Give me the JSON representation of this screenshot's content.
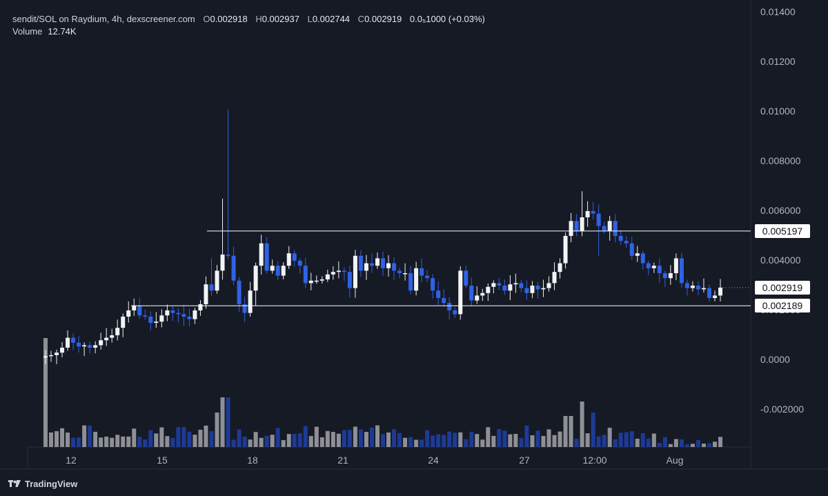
{
  "header": {
    "symbol_line": "sendit/SOL on Raydium, 4h, dexscreener.com",
    "open_label": "O",
    "open_value": "0.002918",
    "high_label": "H",
    "high_value": "0.002937",
    "low_label": "L",
    "low_value": "0.002744",
    "close_label": "C",
    "close_value": "0.002919",
    "change": "0.0₅1000 (+0.03%)"
  },
  "volume": {
    "label": "Volume",
    "value": "12.74K"
  },
  "footer": {
    "brand": "TradingView"
  },
  "colors": {
    "up": "#f2f3f5",
    "down": "#2f62e6",
    "vol_up": "#8e9096",
    "vol_down": "#1d3a96",
    "line": "#ffffff",
    "bg": "#161a25"
  },
  "chart_data": {
    "type": "candlestick",
    "title": "sendit/SOL on Raydium, 4h",
    "ylim": [
      -0.003,
      0.0145
    ],
    "y_ticks": [
      "0.01400",
      "0.01200",
      "0.01000",
      "0.008000",
      "0.006000",
      "0.004000",
      "0.002000",
      "0.0000",
      "-0.002000"
    ],
    "y_tick_values": [
      0.014,
      0.012,
      0.01,
      0.008,
      0.006,
      0.004,
      0.002,
      0.0,
      -0.002
    ],
    "x_ticks": [
      "12",
      "15",
      "18",
      "21",
      "24",
      "27",
      "12:00",
      "Aug"
    ],
    "horizontal_lines": [
      {
        "value": 0.005197,
        "label": "0.005197"
      },
      {
        "value": 0.002189,
        "label": "0.002189"
      }
    ],
    "current_price": {
      "value": 0.002919,
      "label": "0.002919"
    },
    "candles_close": [
      0.00016,
      0.0002,
      0.0003,
      0.0005,
      0.0009,
      0.0007,
      0.00055,
      0.0006,
      0.0005,
      0.0006,
      0.0008,
      0.0009,
      0.001,
      0.0013,
      0.00175,
      0.002,
      0.0022,
      0.0018,
      0.00175,
      0.0015,
      0.00155,
      0.0018,
      0.002,
      0.0019,
      0.00185,
      0.00175,
      0.00165,
      0.002,
      0.00225,
      0.00305,
      0.0028,
      0.0036,
      0.00425,
      0.0042,
      0.0032,
      0.00225,
      0.0019,
      0.0028,
      0.0038,
      0.0047,
      0.0036,
      0.0038,
      0.0034,
      0.0038,
      0.0043,
      0.004,
      0.0038,
      0.0031,
      0.0032,
      0.0032,
      0.00325,
      0.00345,
      0.00355,
      0.0036,
      0.00355,
      0.0029,
      0.0042,
      0.0036,
      0.0039,
      0.0038,
      0.0041,
      0.0037,
      0.0039,
      0.0036,
      0.0035,
      0.0035,
      0.0028,
      0.0037,
      0.0034,
      0.0033,
      0.0028,
      0.0025,
      0.0023,
      0.002,
      0.00185,
      0.0036,
      0.003,
      0.0024,
      0.0026,
      0.0027,
      0.00295,
      0.0031,
      0.003,
      0.0028,
      0.00305,
      0.0031,
      0.0029,
      0.0027,
      0.003,
      0.00285,
      0.0029,
      0.0031,
      0.00355,
      0.0039,
      0.005,
      0.0056,
      0.0052,
      0.00575,
      0.006,
      0.0059,
      0.0054,
      0.0052,
      0.0056,
      0.005,
      0.0048,
      0.0047,
      0.0042,
      0.0043,
      0.0039,
      0.0037,
      0.0038,
      0.0035,
      0.0033,
      0.0035,
      0.0041,
      0.0031,
      0.0029,
      0.003,
      0.00285,
      0.0029,
      0.0025,
      0.0026,
      0.00292
    ],
    "volume_scale_note": "relative volume heights",
    "volume_max_label": "12.74K"
  }
}
